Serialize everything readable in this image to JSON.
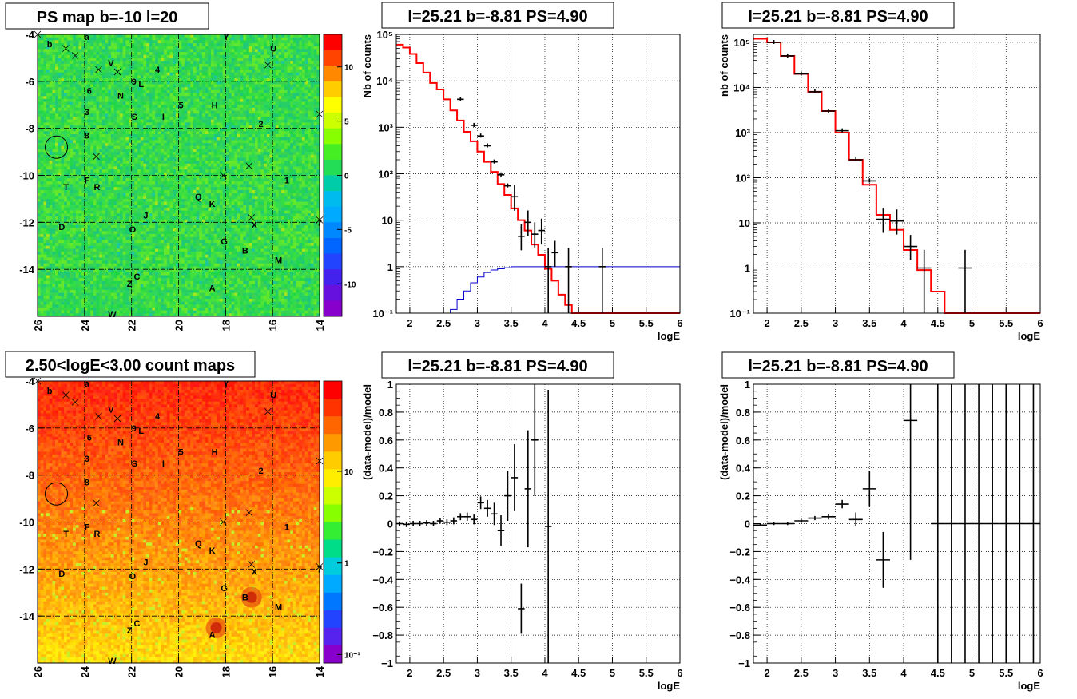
{
  "panels": {
    "ps_map": {
      "title": "PS map b=-10 l=20"
    },
    "count_map": {
      "title": "2.50<logE<3.00 count maps"
    },
    "spec1": {
      "title": "l=25.21 b=-8.81 PS=4.90"
    },
    "spec2": {
      "title": "l=25.21 b=-8.81 PS=4.90"
    },
    "resid1": {
      "title": "l=25.21 b=-8.81 PS=4.90"
    },
    "resid2": {
      "title": "l=25.21 b=-8.81 PS=4.90"
    }
  },
  "chart_data": [
    {
      "type": "heatmap",
      "panel": "ps_map",
      "title": "PS map b=-10 l=20",
      "xticks": [
        26,
        24,
        22,
        20,
        18,
        16,
        14
      ],
      "yticks": [
        -4,
        -6,
        -8,
        -10,
        -12,
        -14
      ],
      "xlim": [
        26.0,
        14.0
      ],
      "ylim": [
        -16.0,
        -4.0
      ],
      "colorbar_ticks": [
        "10",
        "5",
        "0",
        "-5",
        "-10"
      ],
      "colorbar_range": [
        -13,
        13
      ],
      "dominant_color": "#33dd44",
      "source_labels": [
        {
          "t": "b",
          "l": 25.5,
          "b": -4.4
        },
        {
          "t": "a",
          "l": 23.9,
          "b": -4.1
        },
        {
          "t": "Y",
          "l": 18.0,
          "b": -4.1
        },
        {
          "t": "U",
          "l": 16.0,
          "b": -4.6
        },
        {
          "t": "V",
          "l": 22.9,
          "b": -5.2
        },
        {
          "t": "4",
          "l": 20.9,
          "b": -5.5
        },
        {
          "t": "9",
          "l": 21.9,
          "b": -6.0
        },
        {
          "t": "L",
          "l": 21.6,
          "b": -6.1
        },
        {
          "t": "6",
          "l": 23.8,
          "b": -6.4
        },
        {
          "t": "N",
          "l": 22.5,
          "b": -6.6
        },
        {
          "t": "5",
          "l": 19.9,
          "b": -7.0
        },
        {
          "t": "H",
          "l": 18.5,
          "b": -7.0
        },
        {
          "t": "3",
          "l": 23.9,
          "b": -7.3
        },
        {
          "t": "S",
          "l": 21.9,
          "b": -7.5
        },
        {
          "t": "I",
          "l": 20.6,
          "b": -7.5
        },
        {
          "t": "2",
          "l": 16.5,
          "b": -7.8
        },
        {
          "t": "8",
          "l": 23.9,
          "b": -8.3
        },
        {
          "t": "F",
          "l": 23.9,
          "b": -10.2
        },
        {
          "t": "R",
          "l": 23.5,
          "b": -10.5
        },
        {
          "t": "T",
          "l": 24.8,
          "b": -10.5
        },
        {
          "t": "1",
          "l": 15.4,
          "b": -10.2
        },
        {
          "t": "Q",
          "l": 19.2,
          "b": -10.9
        },
        {
          "t": "K",
          "l": 18.6,
          "b": -11.2
        },
        {
          "t": "J",
          "l": 21.4,
          "b": -11.7
        },
        {
          "t": "X",
          "l": 16.8,
          "b": -12.1
        },
        {
          "t": "7",
          "l": 14.0,
          "b": -12.0
        },
        {
          "t": "D",
          "l": 25.0,
          "b": -12.2
        },
        {
          "t": "O",
          "l": 22.0,
          "b": -12.3
        },
        {
          "t": "G",
          "l": 18.1,
          "b": -12.8
        },
        {
          "t": "B",
          "l": 17.2,
          "b": -13.2
        },
        {
          "t": "M",
          "l": 15.8,
          "b": -13.6
        },
        {
          "t": "C",
          "l": 21.8,
          "b": -14.3
        },
        {
          "t": "Z",
          "l": 22.1,
          "b": -14.6
        },
        {
          "t": "A",
          "l": 18.6,
          "b": -14.8
        },
        {
          "t": "W",
          "l": 22.9,
          "b": -15.9
        }
      ],
      "crosses": [
        {
          "l": 26.0,
          "b": -4.0
        },
        {
          "l": 24.8,
          "b": -4.6
        },
        {
          "l": 24.4,
          "b": -4.9
        },
        {
          "l": 23.4,
          "b": -5.5
        },
        {
          "l": 22.6,
          "b": -5.6
        },
        {
          "l": 16.2,
          "b": -5.3
        },
        {
          "l": 14.0,
          "b": -7.4
        },
        {
          "l": 23.5,
          "b": -9.2
        },
        {
          "l": 17.0,
          "b": -9.6
        },
        {
          "l": 18.1,
          "b": -10.0
        },
        {
          "l": 16.9,
          "b": -11.8
        },
        {
          "l": 14.0,
          "b": -11.9
        }
      ],
      "circle": {
        "l": 25.2,
        "b": -8.8
      }
    },
    {
      "type": "heatmap",
      "panel": "count_map",
      "title": "2.50<logE<3.00 count maps",
      "xticks": [
        26,
        24,
        22,
        20,
        18,
        16,
        14
      ],
      "yticks": [
        -4,
        -6,
        -8,
        -10,
        -12,
        -14
      ],
      "xlim": [
        26.0,
        14.0
      ],
      "ylim": [
        -16.0,
        -4.0
      ],
      "colorbar_ticks": [
        "10",
        "1",
        "10⁻¹"
      ],
      "gradient": "red at b=-4 to yellow at b=-16",
      "hotspots": [
        {
          "l": 16.9,
          "b": -13.2
        },
        {
          "l": 18.4,
          "b": -14.5
        }
      ]
    },
    {
      "type": "line",
      "panel": "spec1",
      "title": "l=25.21 b=-8.81 PS=4.90",
      "xlabel": "logE",
      "ylabel": "Nb of counts",
      "xlim": [
        1.8,
        6.0
      ],
      "ylim": [
        0.1,
        100000
      ],
      "yscale": "log",
      "xticks": [
        "2",
        "2.5",
        "3",
        "3.5",
        "4",
        "4.5",
        "5",
        "5.5",
        "6"
      ],
      "yticks": [
        "10⁻¹",
        "1",
        "10",
        "10²",
        "10³",
        "10⁴",
        "10⁵"
      ],
      "bin_width": 0.1,
      "series": [
        {
          "role": "model",
          "color": "#ff0000",
          "x": [
            1.8,
            1.9,
            2.0,
            2.1,
            2.2,
            2.3,
            2.4,
            2.5,
            2.6,
            2.7,
            2.8,
            2.9,
            3.0,
            3.1,
            3.2,
            3.3,
            3.4,
            3.5,
            3.6,
            3.7,
            3.8,
            3.9,
            4.0,
            4.1,
            4.2,
            4.3,
            4.4,
            4.5,
            4.6,
            4.7,
            4.8,
            4.9,
            5.0,
            5.1,
            5.2,
            5.3,
            5.4,
            5.5,
            5.6,
            5.7,
            5.8,
            5.9
          ],
          "values": [
            60000,
            52000,
            38000,
            24000,
            15000,
            9000,
            6500,
            4000,
            2300,
            1400,
            800,
            500,
            300,
            180,
            110,
            60,
            35,
            18,
            10,
            6,
            3,
            1.8,
            0.9,
            0.5,
            0.25,
            0.15,
            0.1,
            0.1,
            0.1,
            0.1,
            0.1,
            0.1,
            0.1,
            0.1,
            0.1,
            0.1,
            0.1,
            0.1,
            0.1,
            0.1,
            0.1,
            0.1
          ]
        },
        {
          "role": "ps_model",
          "color": "#0000cc",
          "x": [
            1.8,
            1.9,
            2.0,
            2.1,
            2.2,
            2.3,
            2.4,
            2.5,
            2.6,
            2.7,
            2.8,
            2.9,
            3.0,
            3.1,
            3.2,
            3.3,
            3.4,
            3.5,
            3.6,
            3.7,
            3.8,
            3.9,
            4.0,
            4.1,
            4.2,
            4.3,
            4.4,
            4.5,
            4.6,
            4.7,
            4.8,
            4.9,
            5.0,
            5.1,
            5.2,
            5.3,
            5.4,
            5.5,
            5.6,
            5.7,
            5.8,
            5.9
          ],
          "values": [
            0.1,
            0.1,
            0.1,
            0.1,
            0.1,
            0.1,
            0.1,
            0.1,
            0.12,
            0.2,
            0.3,
            0.45,
            0.6,
            0.75,
            0.85,
            0.9,
            0.95,
            1,
            1,
            1,
            1,
            1,
            1,
            1,
            1,
            1,
            1,
            1,
            1,
            1,
            1,
            1,
            1,
            1,
            1,
            1,
            1,
            1,
            1,
            1,
            1,
            1
          ]
        },
        {
          "role": "data",
          "color": "#000000",
          "x": [
            2.75,
            2.95,
            3.05,
            3.15,
            3.25,
            3.35,
            3.45,
            3.55,
            3.65,
            3.75,
            3.85,
            3.95,
            4.05,
            4.15,
            4.35,
            4.85
          ],
          "values": [
            4000,
            1100,
            650,
            400,
            180,
            95,
            55,
            32,
            4.5,
            9,
            5,
            6,
            1,
            2,
            1,
            1
          ]
        }
      ]
    },
    {
      "type": "line",
      "panel": "spec2",
      "title": "l=25.21 b=-8.81 PS=4.90",
      "xlabel": "logE",
      "ylabel": "nb of counts",
      "xlim": [
        1.8,
        6.0
      ],
      "ylim": [
        0.1,
        150000
      ],
      "yscale": "log",
      "xticks": [
        "2",
        "2.5",
        "3",
        "3.5",
        "4",
        "4.5",
        "5",
        "5.5",
        "6"
      ],
      "yticks": [
        "10⁻¹",
        "1",
        "10",
        "10²",
        "10³",
        "10⁴",
        "10⁵"
      ],
      "bin_width": 0.2,
      "series": [
        {
          "role": "model",
          "color": "#ff0000",
          "x": [
            1.8,
            2.0,
            2.2,
            2.4,
            2.6,
            2.8,
            3.0,
            3.2,
            3.4,
            3.6,
            3.8,
            4.0,
            4.2,
            4.4,
            4.6,
            4.8,
            5.0,
            5.2,
            5.4,
            5.6,
            5.8
          ],
          "values": [
            120000,
            100000,
            50000,
            20000,
            8000,
            3000,
            1000,
            250,
            70,
            15,
            7,
            2.5,
            0.9,
            0.3,
            0.1,
            0.1,
            0.1,
            0.1,
            0.1,
            0.1,
            0.1
          ]
        },
        {
          "role": "data",
          "color": "#000000",
          "x": [
            2.1,
            2.3,
            2.5,
            2.7,
            2.9,
            3.1,
            3.3,
            3.5,
            3.7,
            3.9,
            4.1,
            4.3,
            4.9
          ],
          "values": [
            100000,
            50000,
            20000,
            8000,
            3000,
            1100,
            250,
            85,
            12,
            11,
            3,
            1,
            1
          ]
        }
      ]
    },
    {
      "type": "scatter",
      "panel": "resid1",
      "title": "l=25.21 b=-8.81 PS=4.90",
      "xlabel": "logE",
      "ylabel": "(data-model)/model",
      "xlim": [
        1.8,
        6.0
      ],
      "ylim": [
        -1,
        1
      ],
      "xticks": [
        "2",
        "2.5",
        "3",
        "3.5",
        "4",
        "4.5",
        "5",
        "5.5",
        "6"
      ],
      "yticks": [
        "−1",
        "−0.8",
        "−0.6",
        "−0.4",
        "−0.2",
        "0",
        "0.2",
        "0.4",
        "0.6",
        "0.8",
        "1"
      ],
      "points": [
        {
          "x": 1.85,
          "y": 0.0,
          "e": 0.015
        },
        {
          "x": 1.95,
          "y": -0.005,
          "e": 0.02
        },
        {
          "x": 2.05,
          "y": 0.0,
          "e": 0.02
        },
        {
          "x": 2.15,
          "y": 0.0,
          "e": 0.02
        },
        {
          "x": 2.25,
          "y": 0.005,
          "e": 0.02
        },
        {
          "x": 2.35,
          "y": 0.0,
          "e": 0.02
        },
        {
          "x": 2.45,
          "y": 0.02,
          "e": 0.02
        },
        {
          "x": 2.55,
          "y": 0.01,
          "e": 0.02
        },
        {
          "x": 2.65,
          "y": 0.02,
          "e": 0.025
        },
        {
          "x": 2.75,
          "y": 0.05,
          "e": 0.025
        },
        {
          "x": 2.85,
          "y": 0.05,
          "e": 0.03
        },
        {
          "x": 2.95,
          "y": 0.03,
          "e": 0.035
        },
        {
          "x": 3.05,
          "y": 0.15,
          "e": 0.045
        },
        {
          "x": 3.15,
          "y": 0.11,
          "e": 0.06
        },
        {
          "x": 3.25,
          "y": 0.07,
          "e": 0.08
        },
        {
          "x": 3.35,
          "y": -0.05,
          "e": 0.11
        },
        {
          "x": 3.45,
          "y": 0.2,
          "e": 0.18
        },
        {
          "x": 3.55,
          "y": 0.33,
          "e": 0.24
        },
        {
          "x": 3.65,
          "y": -0.61,
          "e": 0.18
        },
        {
          "x": 3.75,
          "y": 0.25,
          "e": 0.42
        },
        {
          "x": 3.85,
          "y": 0.6,
          "e": 0.4
        },
        {
          "x": 4.05,
          "y": -0.02,
          "e": 0.98
        }
      ]
    },
    {
      "type": "scatter",
      "panel": "resid2",
      "title": "l=25.21 b=-8.81 PS=4.90",
      "xlabel": "logE",
      "ylabel": "(data-model)/model",
      "xlim": [
        1.8,
        6.0
      ],
      "ylim": [
        -1,
        1
      ],
      "xticks": [
        "2",
        "2.5",
        "3",
        "3.5",
        "4",
        "4.5",
        "5",
        "5.5",
        "6"
      ],
      "yticks": [
        "−1",
        "−0.8",
        "−0.6",
        "−0.4",
        "−0.2",
        "0",
        "0.2",
        "0.4",
        "0.6",
        "0.8",
        "1"
      ],
      "points": [
        {
          "x": 1.9,
          "y": -0.01,
          "e": 0.01
        },
        {
          "x": 2.1,
          "y": 0.0,
          "e": 0.01
        },
        {
          "x": 2.3,
          "y": 0.0,
          "e": 0.01
        },
        {
          "x": 2.5,
          "y": 0.02,
          "e": 0.015
        },
        {
          "x": 2.7,
          "y": 0.04,
          "e": 0.015
        },
        {
          "x": 2.9,
          "y": 0.05,
          "e": 0.02
        },
        {
          "x": 3.1,
          "y": 0.14,
          "e": 0.03
        },
        {
          "x": 3.3,
          "y": 0.03,
          "e": 0.05
        },
        {
          "x": 3.5,
          "y": 0.25,
          "e": 0.13
        },
        {
          "x": 3.7,
          "y": -0.26,
          "e": 0.2
        },
        {
          "x": 4.1,
          "y": 0.74,
          "e": 1.0
        },
        {
          "x": 4.5,
          "y": 0.0,
          "e": 1.5
        },
        {
          "x": 4.7,
          "y": 0.0,
          "e": 1.5
        },
        {
          "x": 4.9,
          "y": 0.0,
          "e": 1.5
        },
        {
          "x": 5.1,
          "y": 0.0,
          "e": 1.5
        },
        {
          "x": 5.3,
          "y": 0.0,
          "e": 1.5
        },
        {
          "x": 5.5,
          "y": 0.0,
          "e": 1.5
        },
        {
          "x": 5.7,
          "y": 0.0,
          "e": 1.5
        },
        {
          "x": 5.9,
          "y": 0.0,
          "e": 1.5
        }
      ]
    }
  ]
}
